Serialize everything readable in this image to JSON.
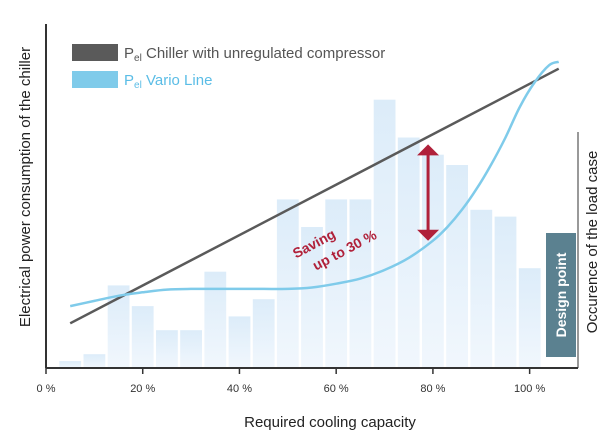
{
  "chart_data": {
    "type": "bar",
    "title": "",
    "xlabel": "Required cooling capacity",
    "ylabel": "Electrical power consumption of the chiller",
    "y2label": "Occurence of the load case",
    "xlim": [
      0,
      110
    ],
    "ylim": [
      0,
      100
    ],
    "x_ticks": [
      0,
      20,
      40,
      60,
      80,
      100
    ],
    "x_tick_labels": [
      "0 %",
      "20 %",
      "40 %",
      "60 %",
      "80 %",
      "100 %"
    ],
    "bar_width": 4.5,
    "grid": false,
    "legend_position": "top-left",
    "occurrence_series": {
      "x": [
        5,
        10,
        15,
        20,
        25,
        30,
        35,
        40,
        45,
        50,
        55,
        60,
        65,
        70,
        75,
        80,
        85,
        90,
        95,
        100
      ],
      "values": [
        2,
        4,
        24,
        18,
        11,
        11,
        28,
        15,
        20,
        49,
        41,
        49,
        49,
        78,
        67,
        62,
        59,
        46,
        44,
        29
      ]
    },
    "series": [
      {
        "name_main": "P",
        "name_sub": "el",
        "name_rest": " Chiller with unregulated compressor",
        "color": "#5a5a5a",
        "x": [
          5,
          106
        ],
        "y": [
          13,
          87
        ]
      },
      {
        "name_main": "P",
        "name_sub": "el",
        "name_rest": " Vario Line",
        "color": "#7fcbea",
        "x": [
          5,
          10,
          15,
          20,
          25,
          30,
          35,
          40,
          45,
          50,
          55,
          60,
          65,
          70,
          75,
          80,
          83,
          86,
          89,
          92,
          95,
          98,
          101,
          104,
          106
        ],
        "y": [
          18,
          19.5,
          21,
          22,
          22.8,
          23,
          23,
          23,
          23,
          23,
          23.4,
          24.5,
          26,
          28.5,
          32,
          37,
          41,
          46,
          52,
          59,
          67,
          76,
          83,
          88,
          89
        ]
      }
    ],
    "annotations": {
      "saving_line1": "Saving",
      "saving_line2": "up to 30 %",
      "design_point": "Design point",
      "arrow_x": 79,
      "arrow_y_top": 65,
      "arrow_y_bottom": 37
    },
    "colors": {
      "bar_top": "#dcecf9",
      "bar_bottom": "#f1f7fd",
      "axis": "#333333",
      "arrow": "#b0213a",
      "design_box": "#5b8190"
    }
  }
}
